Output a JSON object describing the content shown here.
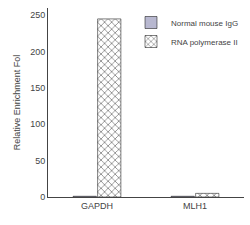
{
  "chart_data": {
    "type": "bar",
    "categories": [
      "GAPDH",
      "MLH1"
    ],
    "series": [
      {
        "name": "Normal mouse IgG",
        "color": "#b8b8d0",
        "values": [
          1,
          1
        ]
      },
      {
        "name": "RNA polymerase II",
        "color": "#e8e8e8",
        "values": [
          245,
          5
        ]
      }
    ],
    "ylabel": "Relative Enrichment Fol",
    "ylim": [
      0,
      260
    ],
    "yticks": [
      0,
      50,
      100,
      150,
      200,
      250
    ],
    "grid": false,
    "legend": "upper right"
  }
}
